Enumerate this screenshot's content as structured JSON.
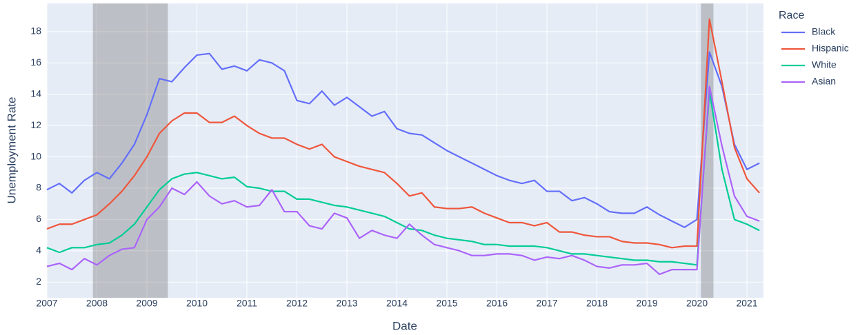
{
  "chart_data": {
    "type": "line",
    "x_title": "Date",
    "y_title": "Unemployment Rate",
    "legend_title": "Race",
    "legend_position": "right",
    "grid": true,
    "xlim": [
      2007,
      2021.33
    ],
    "xticks": [
      2007,
      2008,
      2009,
      2010,
      2011,
      2012,
      2013,
      2014,
      2015,
      2016,
      2017,
      2018,
      2019,
      2020,
      2021
    ],
    "ylim": [
      1,
      19.8
    ],
    "yticks": [
      2,
      4,
      6,
      8,
      10,
      12,
      14,
      16,
      18
    ],
    "shaded_x_ranges": [
      [
        2007.92,
        2009.42
      ],
      [
        2020.08,
        2020.33
      ]
    ],
    "x": [
      2007,
      2007.25,
      2007.5,
      2007.75,
      2008,
      2008.25,
      2008.5,
      2008.75,
      2009,
      2009.25,
      2009.5,
      2009.75,
      2010,
      2010.25,
      2010.5,
      2010.75,
      2011,
      2011.25,
      2011.5,
      2011.75,
      2012,
      2012.25,
      2012.5,
      2012.75,
      2013,
      2013.25,
      2013.5,
      2013.75,
      2014,
      2014.25,
      2014.5,
      2014.75,
      2015,
      2015.25,
      2015.5,
      2015.75,
      2016,
      2016.25,
      2016.5,
      2016.75,
      2017,
      2017.25,
      2017.5,
      2017.75,
      2018,
      2018.25,
      2018.5,
      2018.75,
      2019,
      2019.25,
      2019.5,
      2019.75,
      2020,
      2020.25,
      2020.5,
      2020.75,
      2021,
      2021.25
    ],
    "series": [
      {
        "name": "Black",
        "color": "#636efa",
        "values": [
          7.9,
          8.3,
          7.7,
          8.5,
          9.0,
          8.6,
          9.6,
          10.8,
          12.7,
          15.0,
          14.8,
          15.7,
          16.5,
          16.6,
          15.6,
          15.8,
          15.5,
          16.2,
          16.0,
          15.5,
          13.6,
          13.4,
          14.2,
          13.3,
          13.8,
          13.2,
          12.6,
          12.9,
          11.8,
          11.5,
          11.4,
          10.9,
          10.4,
          10.0,
          9.6,
          9.2,
          8.8,
          8.5,
          8.3,
          8.5,
          7.8,
          7.8,
          7.2,
          7.4,
          7.0,
          6.5,
          6.4,
          6.4,
          6.8,
          6.3,
          5.9,
          5.5,
          6.0,
          16.7,
          14.5,
          10.8,
          9.2,
          9.6
        ]
      },
      {
        "name": "Hispanic",
        "color": "#EF553B",
        "values": [
          5.4,
          5.7,
          5.7,
          6.0,
          6.3,
          7.0,
          7.8,
          8.8,
          10.0,
          11.5,
          12.3,
          12.8,
          12.8,
          12.2,
          12.2,
          12.6,
          12.0,
          11.5,
          11.2,
          11.2,
          10.8,
          10.5,
          10.8,
          10.0,
          9.7,
          9.4,
          9.2,
          9.0,
          8.3,
          7.5,
          7.7,
          6.8,
          6.7,
          6.7,
          6.8,
          6.4,
          6.1,
          5.8,
          5.8,
          5.6,
          5.8,
          5.2,
          5.2,
          5.0,
          4.9,
          4.9,
          4.6,
          4.5,
          4.5,
          4.4,
          4.2,
          4.3,
          4.3,
          18.8,
          14.8,
          10.6,
          8.6,
          7.7
        ]
      },
      {
        "name": "White",
        "color": "#00cc96",
        "values": [
          4.2,
          3.9,
          4.2,
          4.2,
          4.4,
          4.5,
          5.0,
          5.7,
          6.8,
          7.9,
          8.6,
          8.9,
          9.0,
          8.8,
          8.6,
          8.7,
          8.1,
          8.0,
          7.8,
          7.8,
          7.3,
          7.3,
          7.1,
          6.9,
          6.8,
          6.6,
          6.4,
          6.2,
          5.8,
          5.4,
          5.3,
          5.0,
          4.8,
          4.7,
          4.6,
          4.4,
          4.4,
          4.3,
          4.3,
          4.3,
          4.2,
          4.0,
          3.8,
          3.8,
          3.7,
          3.6,
          3.5,
          3.4,
          3.4,
          3.3,
          3.3,
          3.2,
          3.1,
          14.2,
          9.2,
          6.0,
          5.7,
          5.3
        ]
      },
      {
        "name": "Asian",
        "color": "#ab63fa",
        "values": [
          3.0,
          3.2,
          2.8,
          3.5,
          3.1,
          3.7,
          4.1,
          4.2,
          6.0,
          6.8,
          8.0,
          7.6,
          8.4,
          7.5,
          7.0,
          7.2,
          6.8,
          6.9,
          7.9,
          6.5,
          6.5,
          5.6,
          5.4,
          6.4,
          6.1,
          4.8,
          5.3,
          5.0,
          4.8,
          5.7,
          5.0,
          4.4,
          4.2,
          4.0,
          3.7,
          3.7,
          3.8,
          3.8,
          3.7,
          3.4,
          3.6,
          3.5,
          3.7,
          3.4,
          3.0,
          2.9,
          3.1,
          3.1,
          3.2,
          2.5,
          2.8,
          2.8,
          2.8,
          14.5,
          10.7,
          7.5,
          6.2,
          5.9
        ]
      }
    ]
  }
}
